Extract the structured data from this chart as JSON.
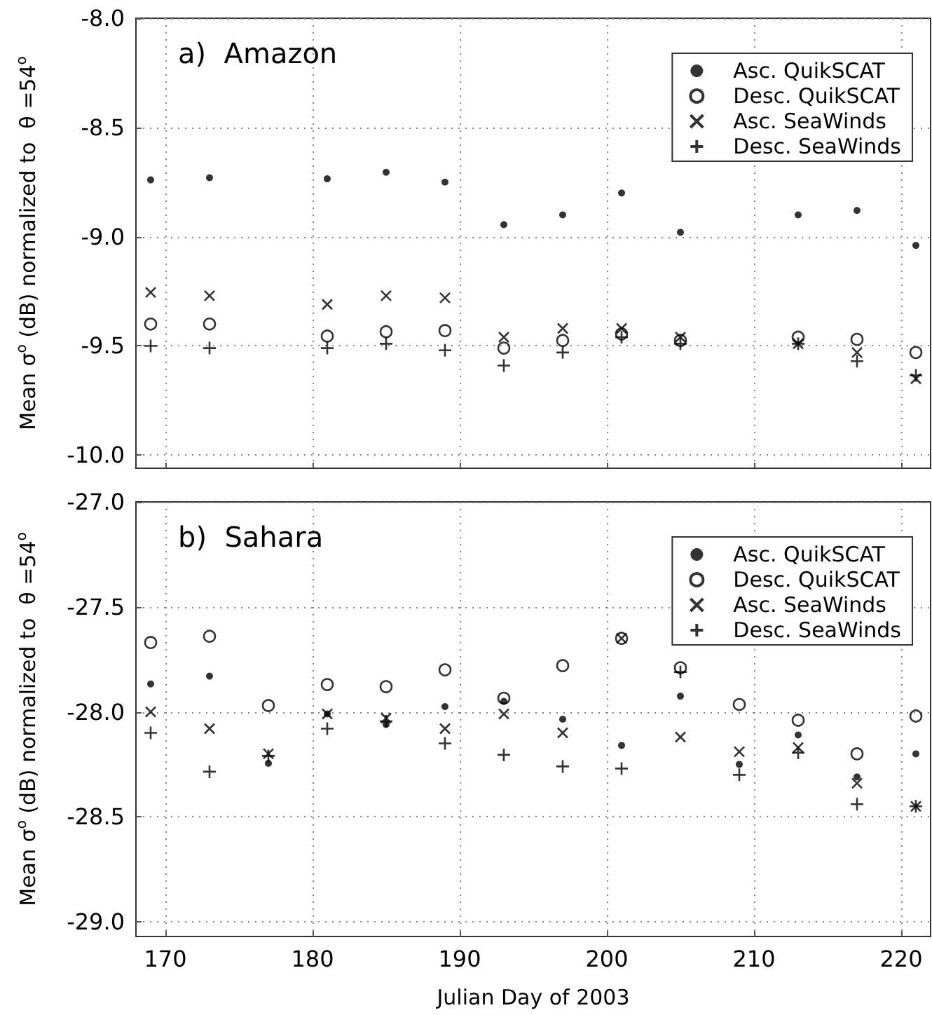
{
  "chart_data": [
    {
      "type": "scatter",
      "title": "a)  Amazon",
      "ylabel": "Mean σ$^{o}$ (dB) normalized to  θ =54$^{o}$",
      "x": [
        169,
        173,
        181,
        185,
        189,
        193,
        197,
        201,
        205,
        213,
        217,
        221
      ],
      "series": [
        {
          "name": "Asc. QuikSCAT",
          "color": "#000000",
          "marker": "circle",
          "values": [
            -8.74,
            -8.73,
            -8.735,
            -8.705,
            -8.75,
            -8.945,
            -8.9,
            -8.8,
            -8.98,
            -8.9,
            -8.88,
            -9.04
          ]
        },
        {
          "name": "Desc. QuikSCAT",
          "color": "#000000",
          "marker": "circle-open",
          "values": [
            -9.4,
            -9.4,
            -9.455,
            -9.435,
            -9.43,
            -9.51,
            -9.475,
            -9.445,
            -9.475,
            -9.46,
            -9.47,
            -9.53
          ]
        },
        {
          "name": "Asc. SeaWinds",
          "color": "#000000",
          "marker": "x",
          "values": [
            -9.255,
            -9.27,
            -9.31,
            -9.27,
            -9.28,
            -9.46,
            -9.42,
            -9.42,
            -9.46,
            -9.49,
            -9.53,
            -9.65
          ]
        },
        {
          "name": "Desc. SeaWinds",
          "color": "#000000",
          "marker": "cross",
          "values": [
            -9.5,
            -9.51,
            -9.51,
            -9.49,
            -9.52,
            -9.59,
            -9.53,
            -9.46,
            -9.49,
            -9.49,
            -9.57,
            -9.635
          ]
        }
      ],
      "xlim": [
        168,
        222
      ],
      "xticks": [
        170,
        180,
        190,
        200,
        210,
        220
      ],
      "ylim": [
        -10.06,
        -8.0
      ],
      "yticks": [
        {
          "value": -8,
          "label": "-8.0"
        },
        -8.5,
        {
          "value": -9,
          "label": "-9.0"
        },
        -9.5,
        {
          "value": -10,
          "label": "-10.0"
        }
      ],
      "grid": true,
      "legend": "top right",
      "tick_labels": "y"
    },
    {
      "type": "scatter",
      "title": "b)  Sahara",
      "ylabel": "Mean σ$^{o}$ (dB) normalized to  θ =54$^{o}$",
      "xlabel": "Julian Day of 2003",
      "x": [
        169,
        173,
        177,
        181,
        185,
        189,
        193,
        197,
        201,
        205,
        209,
        213,
        217,
        221
      ],
      "series": [
        {
          "name": "Asc. QuikSCAT",
          "color": "#000000",
          "marker": "circle",
          "values": [
            -27.867,
            -27.83,
            -28.245,
            -28.01,
            -28.06,
            -27.975,
            -27.95,
            -28.035,
            -28.16,
            -27.925,
            -28.25,
            -28.11,
            -28.31,
            -28.2
          ]
        },
        {
          "name": "Desc. QuikSCAT",
          "color": "#000000",
          "marker": "circle-open",
          "values": [
            -27.67,
            -27.64,
            -27.97,
            -27.87,
            -27.88,
            -27.8,
            -27.935,
            -27.78,
            -27.65,
            -27.79,
            -27.965,
            -28.04,
            -28.2,
            -28.02
          ]
        },
        {
          "name": "Asc. SeaWinds",
          "color": "#000000",
          "marker": "x",
          "values": [
            -28.0,
            -28.08,
            -28.2,
            -28.01,
            -28.03,
            -28.08,
            -28.01,
            -28.1,
            -27.65,
            -28.12,
            -28.19,
            -28.17,
            -28.34,
            -28.45
          ]
        },
        {
          "name": "Desc. SeaWinds",
          "color": "#000000",
          "marker": "cross",
          "values": [
            -28.1,
            -28.285,
            -28.21,
            -28.08,
            -28.045,
            -28.15,
            -28.205,
            -28.26,
            -28.27,
            -27.81,
            -28.3,
            -28.195,
            -28.44,
            -28.45
          ]
        }
      ],
      "xlim": [
        168,
        222
      ],
      "xticks": [
        170,
        180,
        190,
        200,
        210,
        220
      ],
      "ylim": [
        -29.07,
        -27.0
      ],
      "yticks": [
        {
          "value": -27,
          "label": "-27.0"
        },
        -27.5,
        {
          "value": -28,
          "label": "-28.0"
        },
        -28.5,
        {
          "value": -29,
          "label": "-29.0"
        }
      ],
      "grid": true,
      "legend": "top right"
    }
  ]
}
